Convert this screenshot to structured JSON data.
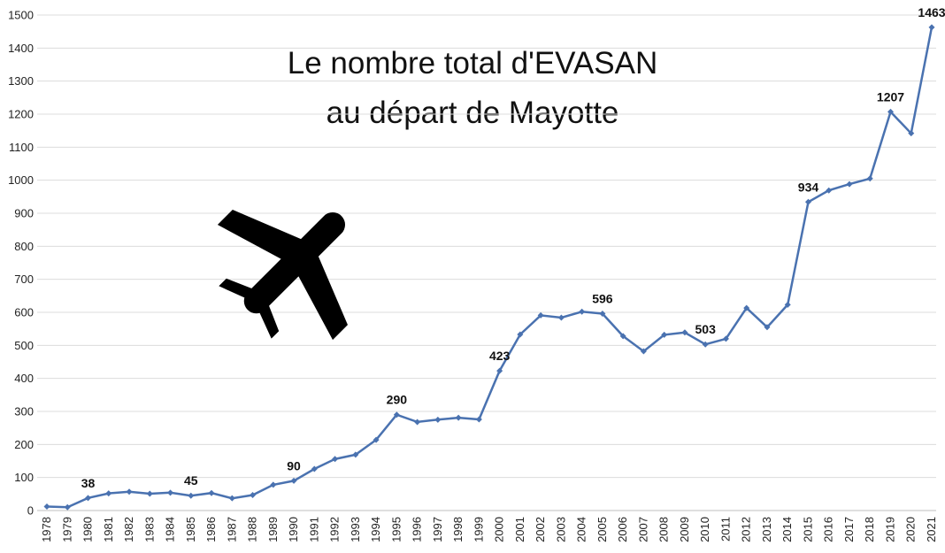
{
  "chart_data": {
    "type": "line",
    "title_line1": "Le nombre total d'EVASAN",
    "title_line2": "au départ de Mayotte",
    "xlabel": "",
    "ylabel": "",
    "ylim": [
      0,
      1500
    ],
    "y_ticks": [
      "0",
      "100",
      "200",
      "300",
      "400",
      "500",
      "600",
      "700",
      "800",
      "900",
      "1000",
      "1100",
      "1200",
      "1300",
      "1400",
      "1500"
    ],
    "grid": true,
    "legend": "none",
    "line_color": "#4a72b0",
    "icon": "airplane-icon",
    "categories": [
      "1978",
      "1979",
      "1980",
      "1981",
      "1982",
      "1983",
      "1984",
      "1985",
      "1986",
      "1987",
      "1988",
      "1989",
      "1990",
      "1991",
      "1992",
      "1993",
      "1994",
      "1995",
      "1996",
      "1997",
      "1998",
      "1999",
      "2000",
      "2001",
      "2002",
      "2003",
      "2004",
      "2005",
      "2006",
      "2007",
      "2008",
      "2009",
      "2010",
      "2011",
      "2012",
      "2013",
      "2014",
      "2015",
      "2016",
      "2017",
      "2018",
      "2019",
      "2020",
      "2021"
    ],
    "series": [
      {
        "values": [
          12,
          10,
          38,
          52,
          57,
          51,
          54,
          45,
          53,
          37,
          47,
          78,
          90,
          126,
          156,
          169,
          214,
          290,
          268,
          275,
          281,
          276,
          423,
          533,
          591,
          584,
          602,
          596,
          528,
          482,
          532,
          539,
          503,
          520,
          613,
          555,
          623,
          934,
          969,
          988,
          1005,
          1207,
          1142,
          1463
        ]
      }
    ],
    "data_labels": [
      {
        "category": "1980",
        "text": "38"
      },
      {
        "category": "1985",
        "text": "45"
      },
      {
        "category": "1990",
        "text": "90"
      },
      {
        "category": "1995",
        "text": "290"
      },
      {
        "category": "2000",
        "text": "423"
      },
      {
        "category": "2005",
        "text": "596"
      },
      {
        "category": "2010",
        "text": "503"
      },
      {
        "category": "2015",
        "text": "934"
      },
      {
        "category": "2019",
        "text": "1207"
      },
      {
        "category": "2021",
        "text": "1463"
      }
    ]
  }
}
